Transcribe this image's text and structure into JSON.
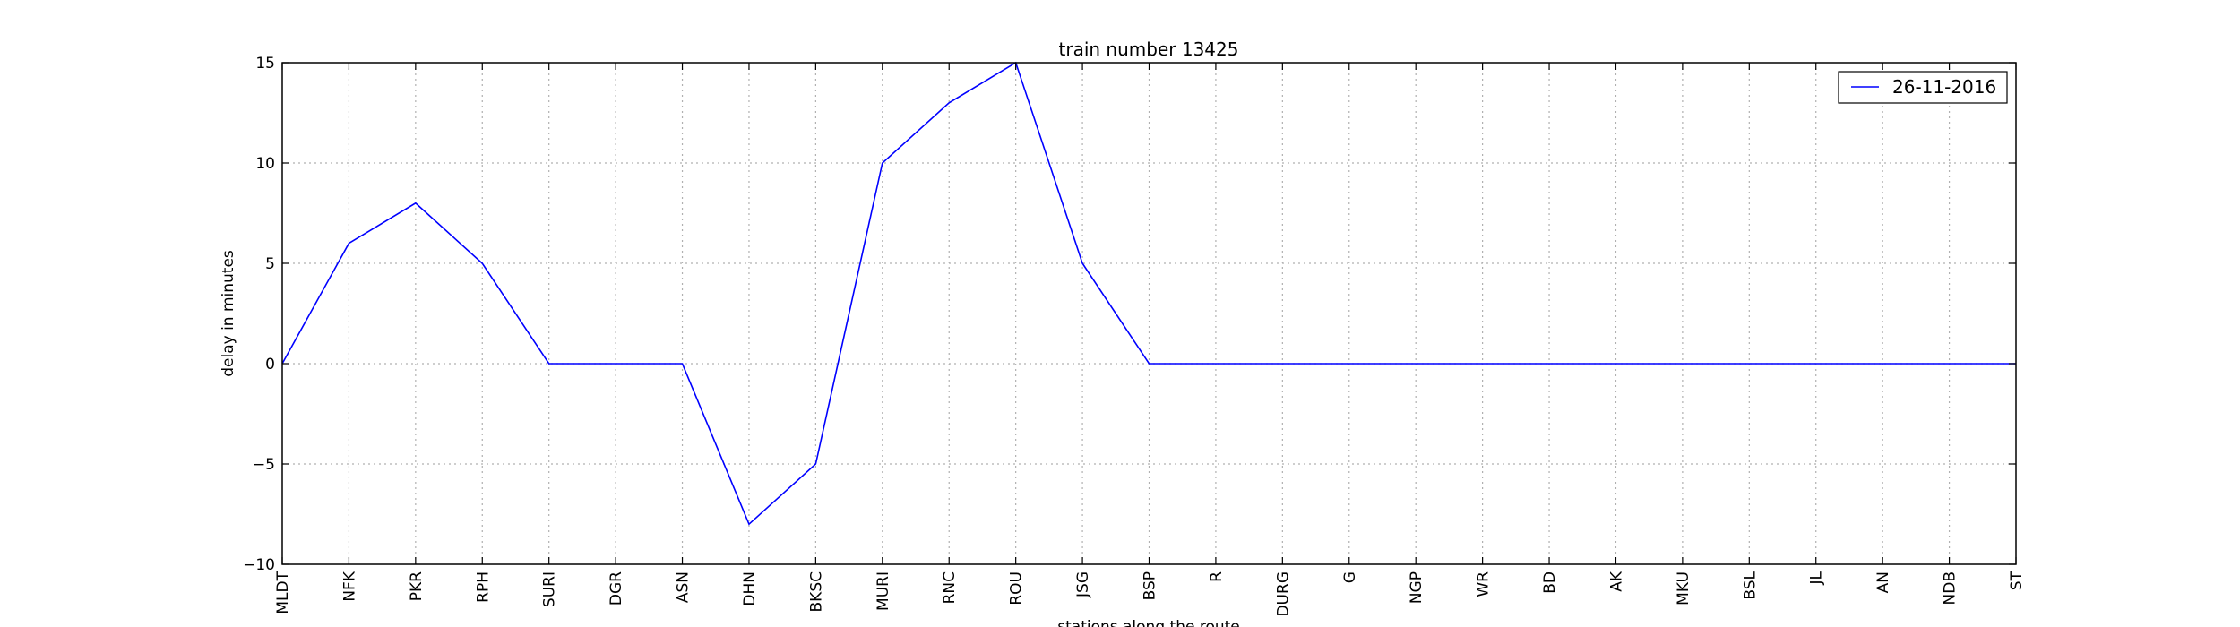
{
  "chart_data": {
    "type": "line",
    "title": "train number 13425",
    "xlabel": "stations along the route",
    "ylabel": "delay in minutes",
    "ylim": [
      -10,
      15
    ],
    "yticks": [
      -10,
      -5,
      0,
      5,
      10,
      15
    ],
    "ytick_labels": [
      "−10",
      "−5",
      "0",
      "5",
      "10",
      "15"
    ],
    "grid": true,
    "legend_position": "top-right",
    "categories": [
      "MLDT",
      "NFK",
      "PKR",
      "RPH",
      "SURI",
      "DGR",
      "ASN",
      "DHN",
      "BKSC",
      "MURI",
      "RNC",
      "ROU",
      "JSG",
      "BSP",
      "R",
      "DURG",
      "G",
      "NGP",
      "WR",
      "BD",
      "AK",
      "MKU",
      "BSL",
      "JL",
      "AN",
      "NDB",
      "ST"
    ],
    "series": [
      {
        "name": "26-11-2016",
        "color": "#0000ff",
        "values": [
          0,
          6,
          8,
          5,
          0,
          0,
          0,
          -8,
          -5,
          10,
          13,
          15,
          5,
          0,
          0,
          0,
          0,
          0,
          0,
          0,
          0,
          0,
          0,
          0,
          0,
          0,
          0
        ]
      }
    ]
  }
}
